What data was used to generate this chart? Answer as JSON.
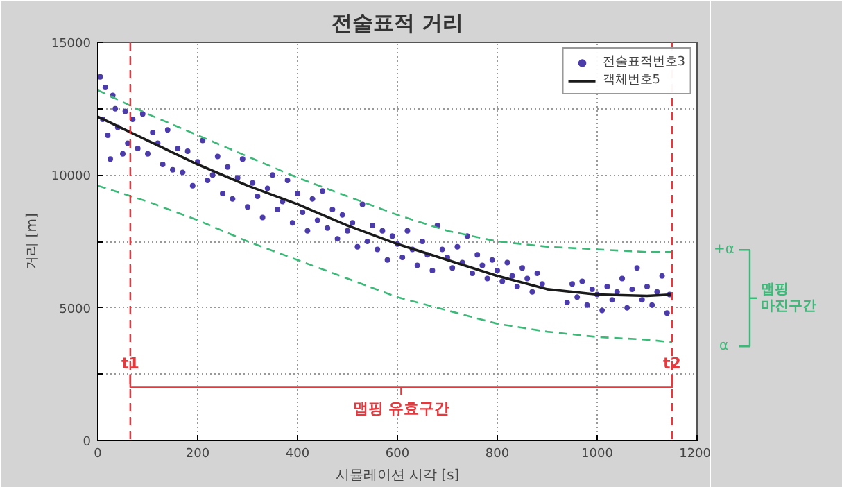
{
  "chart_data": {
    "type": "scatter",
    "title": "전술표적 거리",
    "xlabel": "시뮬레이션 시각 [s]",
    "ylabel": "거리 [m]",
    "xlim": [
      0,
      1200
    ],
    "xticks": [
      0,
      200,
      400,
      600,
      800,
      1000,
      1200
    ],
    "ylim": [
      0,
      15000
    ],
    "yticks": [
      0,
      {
        "value": 2500,
        "label": null
      },
      5000,
      {
        "value": 7500,
        "label": null
      },
      10000,
      {
        "value": 12500,
        "label": null
      },
      15000
    ],
    "grid": true,
    "legend": "top right",
    "series": [
      {
        "name": "전술표적번호3",
        "marker": "circle",
        "color": "#4b3bab",
        "x": [
          5,
          10,
          15,
          20,
          25,
          30,
          35,
          40,
          50,
          55,
          60,
          70,
          80,
          90,
          100,
          110,
          120,
          130,
          140,
          150,
          160,
          170,
          180,
          190,
          200,
          210,
          220,
          230,
          240,
          250,
          260,
          270,
          280,
          290,
          300,
          310,
          320,
          330,
          340,
          350,
          360,
          370,
          380,
          390,
          400,
          410,
          420,
          430,
          440,
          450,
          460,
          470,
          480,
          490,
          500,
          510,
          520,
          530,
          540,
          550,
          560,
          570,
          580,
          590,
          600,
          610,
          620,
          630,
          640,
          650,
          660,
          670,
          680,
          690,
          700,
          710,
          720,
          730,
          740,
          750,
          760,
          770,
          780,
          790,
          800,
          810,
          820,
          830,
          840,
          850,
          860,
          870,
          880,
          890,
          940,
          950,
          960,
          970,
          980,
          990,
          1000,
          1010,
          1020,
          1030,
          1040,
          1050,
          1060,
          1070,
          1080,
          1090,
          1100,
          1110,
          1120,
          1130,
          1140,
          1145
        ],
        "values": [
          13700,
          12100,
          13300,
          11500,
          10600,
          13000,
          12500,
          11800,
          10800,
          12400,
          11200,
          12100,
          11000,
          12300,
          10800,
          11600,
          11200,
          10400,
          11700,
          10200,
          11000,
          10100,
          10900,
          9600,
          10500,
          11300,
          9800,
          10000,
          10700,
          9300,
          10300,
          9100,
          9900,
          10600,
          8800,
          9700,
          9200,
          8400,
          9500,
          10000,
          8700,
          9000,
          9800,
          8200,
          9300,
          8600,
          7900,
          9100,
          8300,
          9400,
          8000,
          8700,
          7600,
          8500,
          7900,
          8200,
          7300,
          8900,
          7500,
          8100,
          7200,
          7900,
          6800,
          7700,
          7400,
          6900,
          7900,
          7200,
          6600,
          7500,
          7000,
          6400,
          8100,
          7200,
          6900,
          6500,
          7300,
          6700,
          7700,
          6300,
          7000,
          6600,
          6100,
          6800,
          6400,
          6000,
          6700,
          6200,
          5800,
          6500,
          6100,
          5600,
          6300,
          5900,
          5200,
          5900,
          5400,
          6000,
          5100,
          5700,
          5500,
          4900,
          5800,
          5300,
          5600,
          6100,
          5000,
          5700,
          6500,
          5300,
          5800,
          5100,
          5600,
          6200,
          4800,
          5500
        ]
      },
      {
        "name": "객체번호5",
        "type": "line",
        "color": "#1a1a1a",
        "line_style": "solid",
        "x": [
          0,
          100,
          200,
          300,
          400,
          500,
          600,
          700,
          800,
          900,
          1000,
          1100,
          1150
        ],
        "values": [
          12200,
          11300,
          10400,
          9600,
          8900,
          8100,
          7400,
          6800,
          6200,
          5700,
          5500,
          5450,
          5500
        ]
      },
      {
        "type": "line",
        "color": "#3cb878",
        "line_style": "dashed",
        "x": [
          0,
          100,
          200,
          300,
          400,
          500,
          600,
          700,
          800,
          900,
          1000,
          1100,
          1150
        ],
        "values": [
          13200,
          12300,
          11500,
          10700,
          9900,
          9200,
          8500,
          7900,
          7500,
          7300,
          7200,
          7100,
          7100
        ]
      },
      {
        "type": "line",
        "color": "#3cb878",
        "line_style": "dashed",
        "x": [
          0,
          100,
          200,
          300,
          400,
          500,
          600,
          700,
          800,
          900,
          1000,
          1100,
          1150
        ],
        "values": [
          9600,
          9000,
          8300,
          7500,
          6800,
          6100,
          5400,
          4900,
          4400,
          4100,
          3900,
          3800,
          3700
        ]
      }
    ],
    "ref_lines": [
      {
        "axis": "x",
        "value": 65,
        "color": "#e8383d",
        "line_style": "dashed"
      },
      {
        "axis": "x",
        "value": 1150,
        "color": "#e8383d",
        "line_style": "dashed"
      }
    ],
    "annotations": [
      {
        "text": "t1",
        "x": 65,
        "y": 2900
      },
      {
        "text": "t2",
        "x": 1150,
        "y": 2900
      },
      "맵핑 유효구간",
      "+α",
      "α",
      "맵핑\n마진구간"
    ]
  }
}
